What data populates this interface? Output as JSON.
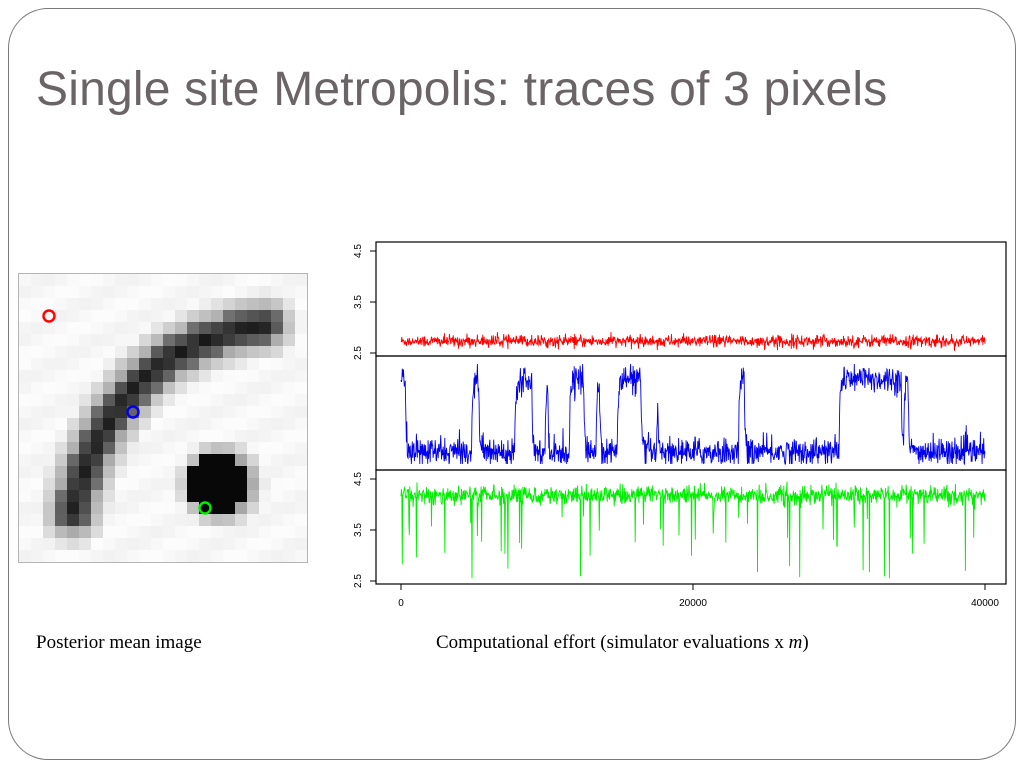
{
  "slide": {
    "title": "Single site Metropolis: traces of 3 pixels",
    "caption_left": "Posterior mean image",
    "caption_right_text": "Computational effort (simulator evaluations x ",
    "caption_right_var": "m",
    "caption_right_close": ")"
  },
  "colors": {
    "title": "#6b6467",
    "red": "#ff0000",
    "blue": "#0000ee",
    "green": "#00ee00"
  },
  "chart_data": [
    {
      "type": "heatmap",
      "title": "",
      "note": "Posterior mean image with three marked pixels",
      "markers": [
        {
          "color": "red",
          "row": 3,
          "col": 2
        },
        {
          "color": "blue",
          "row": 11,
          "col": 9
        },
        {
          "color": "green",
          "row": 19,
          "col": 15
        }
      ]
    },
    {
      "type": "line",
      "title": "",
      "xlabel": "",
      "x_range": [
        0,
        40000
      ],
      "x_ticks": [
        "0",
        "20000",
        "40000"
      ],
      "panels": [
        {
          "series": "red",
          "y_ticks": [
            "2.5",
            "3.5",
            "4.5"
          ],
          "ylim": [
            2.5,
            4.5
          ],
          "typical_level": 2.75
        },
        {
          "series": "blue",
          "y_ticks": [],
          "range_description": "switches between two levels"
        },
        {
          "series": "green",
          "y_ticks": [
            "2.5",
            "3.5",
            "4.5"
          ],
          "ylim": [
            2.5,
            4.5
          ],
          "typical_level": 4.2
        }
      ]
    }
  ]
}
